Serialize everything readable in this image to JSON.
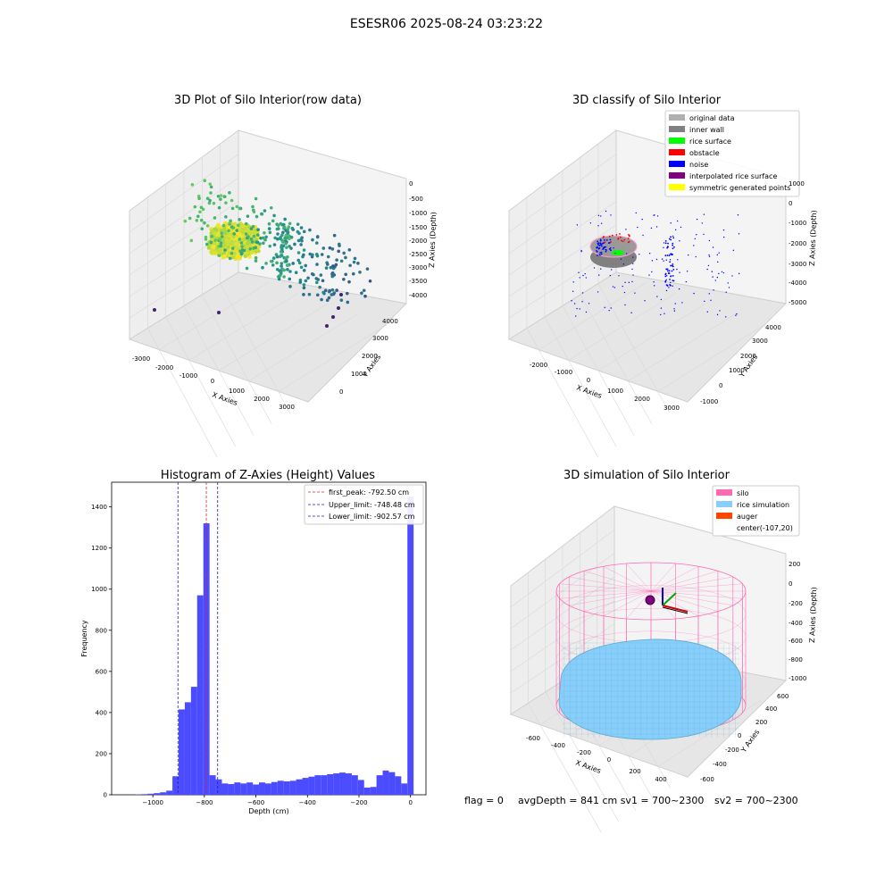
{
  "suptitle": "ESESR06 2025-08-24 03:23:22",
  "colors": {
    "hist_bar": "#4b4bff",
    "peak_line": "#d62728",
    "limit_line": "#1f1fb4",
    "pane": "#f2f2f2",
    "silo": "#ff69b4",
    "rice": "#87cefa",
    "auger": "#ff4500",
    "inner_wall": "#808080",
    "rice_surface": "#00ff00",
    "obstacle": "#ff0000",
    "noise": "#0000ff",
    "interp": "#800080",
    "sym": "#ffff00",
    "original": "#b0b0b0"
  },
  "panels": {
    "raw": {
      "title": "3D Plot of Silo Interior(row data)",
      "xlabel": "X Axies",
      "ylabel": "Y Axies",
      "zlabel": "Z Axies (Depth)",
      "xticks": [
        "-3000",
        "-2000",
        "-1000",
        "0",
        "1000",
        "2000",
        "3000"
      ],
      "yticks": [
        "0",
        "1000",
        "2000",
        "3000",
        "4000"
      ],
      "zticks": [
        "0",
        "-500",
        "-1000",
        "-1500",
        "-2000",
        "-2500",
        "-3000",
        "-3500",
        "-4000"
      ]
    },
    "classify": {
      "title": "3D classify of Silo Interior",
      "xlabel": "X Axies",
      "ylabel": "Y Axies",
      "zlabel": "Z Axies (Depth)",
      "xticks": [
        "-2000",
        "-1000",
        "0",
        "1000",
        "2000",
        "3000"
      ],
      "yticks": [
        "-1000",
        "0",
        "1000",
        "2000",
        "3000",
        "4000"
      ],
      "zticks": [
        "1000",
        "0",
        "-1000",
        "-2000",
        "-3000",
        "-4000",
        "-5000"
      ],
      "legend": [
        {
          "label": "original data",
          "color": "#b0b0b0"
        },
        {
          "label": "inner wall",
          "color": "#808080"
        },
        {
          "label": "rice surface",
          "color": "#00ff00"
        },
        {
          "label": "obstacle",
          "color": "#ff0000"
        },
        {
          "label": "noise",
          "color": "#0000ff"
        },
        {
          "label": "interpolated rice surface",
          "color": "#800080"
        },
        {
          "label": "symmetric generated points",
          "color": "#ffff00"
        }
      ]
    },
    "sim": {
      "title": "3D simulation of Silo Interior",
      "xlabel": "X Axies",
      "ylabel": "Y Axies",
      "zlabel": "Z Axies (Depth)",
      "xticks": [
        "-600",
        "-400",
        "-200",
        "0",
        "200",
        "400"
      ],
      "yticks": [
        "-600",
        "-400",
        "-200",
        "0",
        "200",
        "400",
        "600"
      ],
      "zticks": [
        "200",
        "0",
        "-200",
        "-400",
        "-600",
        "-800",
        "-1000"
      ],
      "legend": [
        {
          "label": "silo",
          "color": "#ff69b4"
        },
        {
          "label": "rice simulation",
          "color": "#87cefa"
        },
        {
          "label": "auger",
          "color": "#ff4500"
        },
        {
          "label": "center(-107,20)",
          "color": ""
        }
      ]
    }
  },
  "footer": {
    "flag": "flag = 0",
    "avg": "avgDepth = 841 cm  sv1 = 700~2300",
    "sv2": "sv2 = 700~2300"
  },
  "chart_data": [
    {
      "type": "bar",
      "title": "Histogram of Z-Axies (Height) Values",
      "xlabel": "Depth (cm)",
      "ylabel": "Frequency",
      "xlim": [
        -1160,
        60
      ],
      "ylim": [
        0,
        1520
      ],
      "xticks": [
        -1000,
        -800,
        -600,
        -400,
        -200,
        0
      ],
      "yticks": [
        0,
        200,
        400,
        600,
        800,
        1000,
        1200,
        1400
      ],
      "bin_width": 24,
      "bins": [
        [
          -1080,
          0
        ],
        [
          -1056,
          2
        ],
        [
          -1032,
          3
        ],
        [
          -1008,
          5
        ],
        [
          -984,
          8
        ],
        [
          -960,
          12
        ],
        [
          -936,
          20
        ],
        [
          -912,
          90
        ],
        [
          -888,
          415
        ],
        [
          -864,
          450
        ],
        [
          -840,
          525
        ],
        [
          -816,
          970
        ],
        [
          -792,
          1320
        ],
        [
          -768,
          95
        ],
        [
          -744,
          75
        ],
        [
          -720,
          55
        ],
        [
          -696,
          52
        ],
        [
          -672,
          60
        ],
        [
          -648,
          55
        ],
        [
          -624,
          60
        ],
        [
          -600,
          50
        ],
        [
          -576,
          60
        ],
        [
          -552,
          55
        ],
        [
          -528,
          62
        ],
        [
          -504,
          68
        ],
        [
          -480,
          65
        ],
        [
          -456,
          68
        ],
        [
          -432,
          75
        ],
        [
          -408,
          82
        ],
        [
          -384,
          88
        ],
        [
          -360,
          95
        ],
        [
          -336,
          95
        ],
        [
          -312,
          100
        ],
        [
          -288,
          104
        ],
        [
          -264,
          108
        ],
        [
          -240,
          104
        ],
        [
          -216,
          95
        ],
        [
          -192,
          72
        ],
        [
          -168,
          35
        ],
        [
          -144,
          38
        ],
        [
          -120,
          95
        ],
        [
          -96,
          118
        ],
        [
          -72,
          110
        ],
        [
          -48,
          90
        ],
        [
          -24,
          55
        ],
        [
          0,
          1450
        ]
      ],
      "lines": [
        {
          "label": "first_peak: -792.50 cm",
          "x": -792.5,
          "color": "#d62728"
        },
        {
          "label": "Upper_limit: -748.48 cm",
          "x": -748.48,
          "color": "#1f1fb4"
        },
        {
          "label": "Lower_limit: -902.57 cm",
          "x": -902.57,
          "color": "#1f1fb4"
        }
      ],
      "legend_position": "top-right"
    }
  ]
}
